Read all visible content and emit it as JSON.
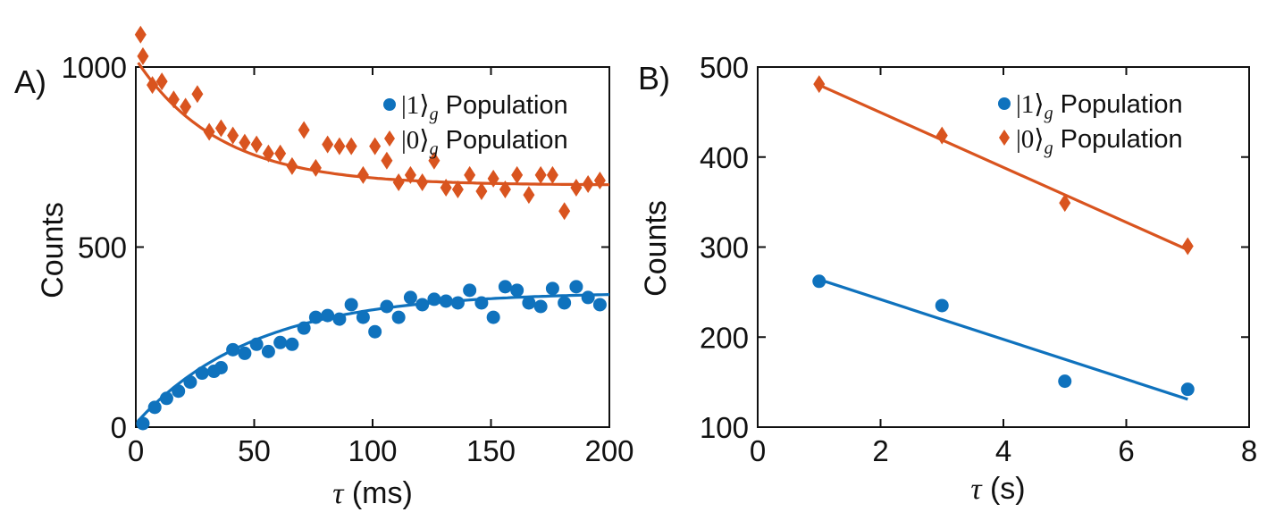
{
  "colors": {
    "one": "#0f72bd",
    "zero": "#d9541f",
    "axis": "#111111"
  },
  "chart_data": [
    {
      "panel": "A)",
      "type": "scatter",
      "xlabel_sym": "τ",
      "xlabel_unit": "(ms)",
      "ylabel": "Counts",
      "xlim": [
        0,
        200
      ],
      "ylim": [
        0,
        1000
      ],
      "xticks": [
        0,
        50,
        100,
        150,
        200
      ],
      "yticks": [
        0,
        500,
        1000
      ],
      "legend": [
        {
          "key": "one",
          "marker": "circle",
          "ket": "|1⟩",
          "sub": "g",
          "text": "Population"
        },
        {
          "key": "zero",
          "marker": "diamond",
          "ket": "|0⟩",
          "sub": "g",
          "text": "Population"
        }
      ],
      "series": [
        {
          "name": "|1⟩g Population",
          "key": "one",
          "marker": "circle",
          "x": [
            3,
            8,
            13,
            18,
            23,
            28,
            33,
            36,
            41,
            46,
            51,
            56,
            61,
            66,
            71,
            76,
            81,
            86,
            91,
            96,
            101,
            106,
            111,
            116,
            121,
            126,
            131,
            136,
            141,
            146,
            151,
            156,
            161,
            166,
            171,
            176,
            181,
            186,
            191,
            196
          ],
          "y": [
            10,
            55,
            80,
            100,
            125,
            150,
            155,
            165,
            215,
            205,
            230,
            210,
            235,
            230,
            275,
            305,
            310,
            300,
            340,
            305,
            265,
            335,
            305,
            360,
            340,
            355,
            350,
            345,
            380,
            345,
            305,
            390,
            380,
            345,
            335,
            385,
            345,
            390,
            360,
            340
          ]
        },
        {
          "name": "|0⟩g Population",
          "key": "zero",
          "marker": "diamond",
          "x": [
            2,
            3,
            7,
            11,
            16,
            21,
            26,
            31,
            36,
            41,
            46,
            51,
            56,
            61,
            66,
            71,
            76,
            81,
            86,
            91,
            96,
            101,
            106,
            111,
            116,
            121,
            126,
            131,
            136,
            141,
            146,
            151,
            156,
            161,
            166,
            171,
            176,
            181,
            186,
            191,
            196
          ],
          "y": [
            1090,
            1030,
            950,
            960,
            910,
            890,
            925,
            820,
            830,
            810,
            790,
            785,
            760,
            760,
            725,
            825,
            720,
            785,
            780,
            780,
            700,
            780,
            740,
            680,
            700,
            680,
            740,
            665,
            660,
            700,
            655,
            690,
            660,
            700,
            645,
            700,
            700,
            600,
            665,
            675,
            685
          ]
        }
      ],
      "fits": [
        {
          "key": "one",
          "model": "A*(1-exp(-x/tau))+B",
          "A": 365,
          "B": 10,
          "tau": 50,
          "x_range": [
            1,
            200
          ]
        },
        {
          "key": "zero",
          "model": "A*exp(-x/tau)+B",
          "A": 350,
          "B": 672,
          "tau": 35,
          "x_range": [
            1,
            200
          ]
        }
      ]
    },
    {
      "panel": "B)",
      "type": "scatter",
      "xlabel_sym": "τ",
      "xlabel_unit": "(s)",
      "ylabel": "Counts",
      "xlim": [
        0,
        8
      ],
      "ylim": [
        100,
        500
      ],
      "xticks": [
        0,
        2,
        4,
        6,
        8
      ],
      "yticks": [
        100,
        200,
        300,
        400,
        500
      ],
      "legend": [
        {
          "key": "one",
          "marker": "circle",
          "ket": "|1⟩",
          "sub": "g",
          "text": "Population"
        },
        {
          "key": "zero",
          "marker": "diamond",
          "ket": "|0⟩",
          "sub": "g",
          "text": "Population"
        }
      ],
      "series": [
        {
          "name": "|1⟩g Population",
          "key": "one",
          "marker": "circle",
          "x": [
            1,
            3,
            5,
            7
          ],
          "y": [
            262,
            235,
            151,
            142
          ]
        },
        {
          "name": "|0⟩g Population",
          "key": "zero",
          "marker": "diamond",
          "x": [
            1,
            3,
            5,
            7
          ],
          "y": [
            481,
            424,
            349,
            301
          ]
        }
      ],
      "fits": [
        {
          "key": "one",
          "model": "linear",
          "x_range": [
            1,
            7
          ],
          "y_range": [
            264,
            131
          ]
        },
        {
          "key": "zero",
          "model": "linear",
          "x_range": [
            1,
            7
          ],
          "y_range": [
            480,
            297
          ]
        }
      ]
    }
  ]
}
